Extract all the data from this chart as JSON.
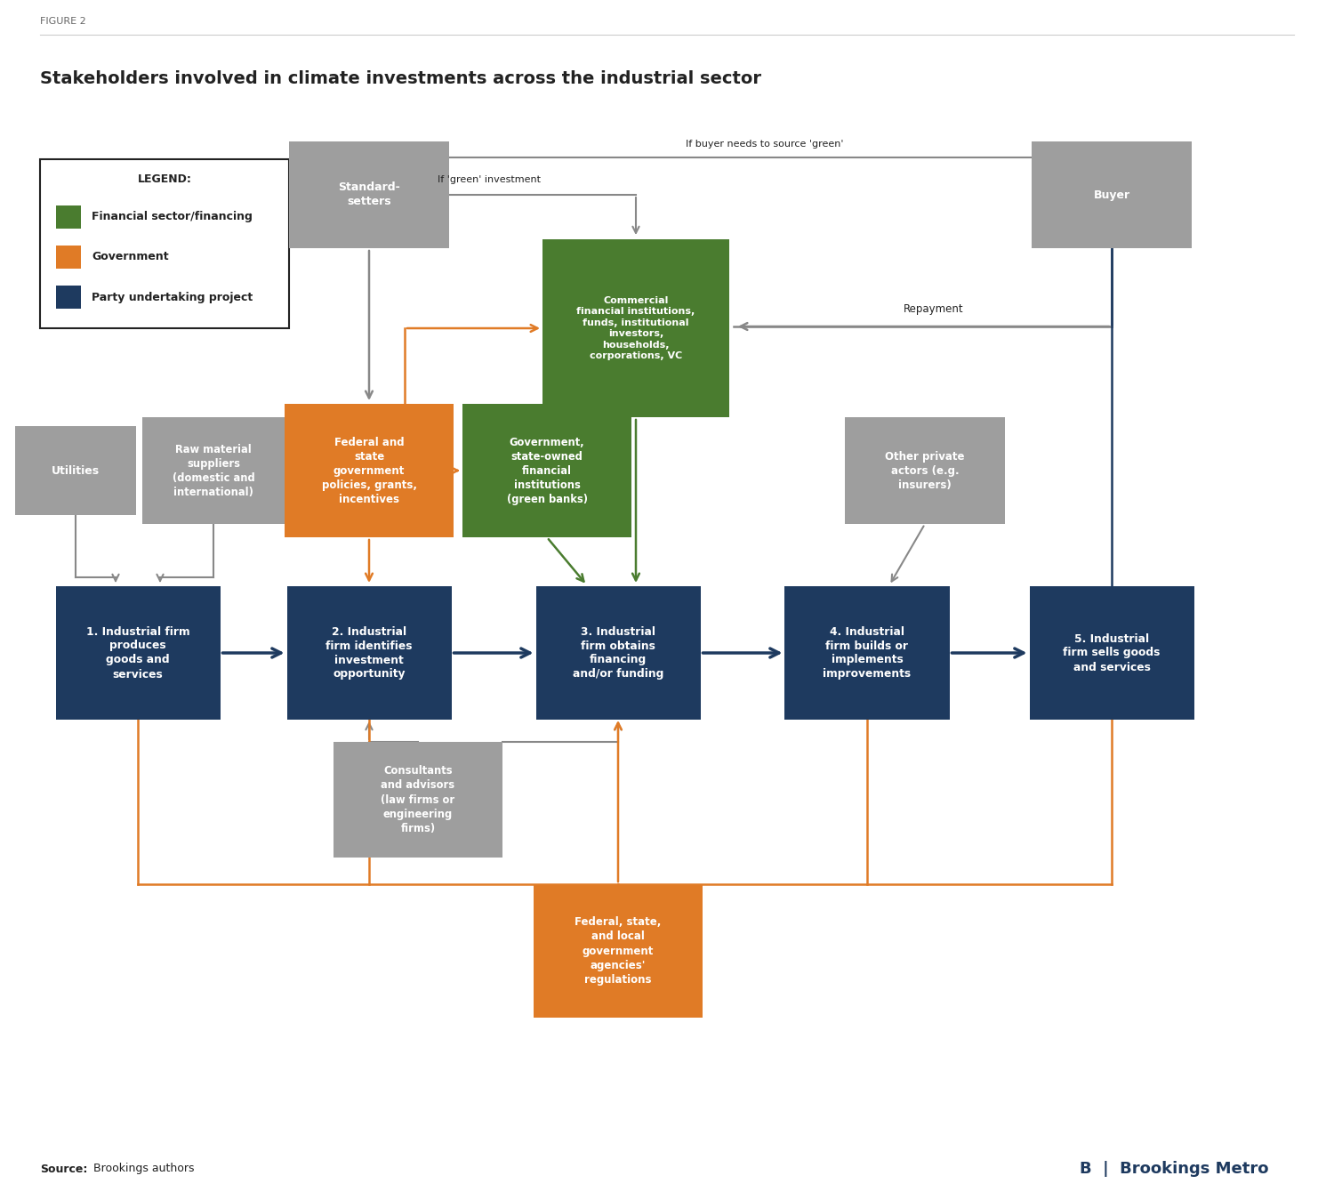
{
  "title": "Stakeholders involved in climate investments across the industrial sector",
  "figure_label": "FIGURE 2",
  "colors": {
    "green": "#4a7c2f",
    "orange": "#e07b26",
    "navy": "#1e3a5f",
    "gray": "#9a9a9a",
    "light_gray": "#b0b0b0",
    "white": "#ffffff",
    "black": "#222222",
    "bg": "#ffffff"
  },
  "legend": {
    "title": "LEGEND:",
    "items": [
      {
        "color": "#4a7c2f",
        "label": "Financial sector/financing"
      },
      {
        "color": "#e07b26",
        "label": "Government"
      },
      {
        "color": "#1e3a5f",
        "label": "Party undertaking project"
      }
    ]
  },
  "source": "Brookings authors"
}
